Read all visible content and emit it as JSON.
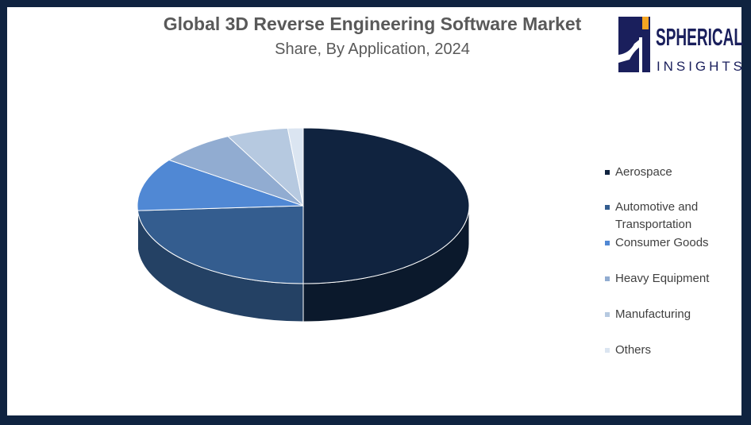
{
  "chart_data": {
    "type": "pie",
    "title": "Global 3D Reverse Engineering Software Market",
    "subtitle": "Share, By Application, 2024",
    "categories": [
      "Aerospace",
      "Automotive and Transportation",
      "Consumer Goods",
      "Heavy Equipment",
      "Manufacturing",
      "Others"
    ],
    "values": [
      50,
      24,
      11,
      7.5,
      6,
      1.5
    ],
    "colors": [
      "#10233f",
      "#345d8f",
      "#5088d4",
      "#91acd1",
      "#b6c9e0",
      "#dbe5f1"
    ],
    "legend_position": "right"
  },
  "logo": {
    "line1": "SPHERICAL",
    "line2": "INSIGHTS"
  }
}
